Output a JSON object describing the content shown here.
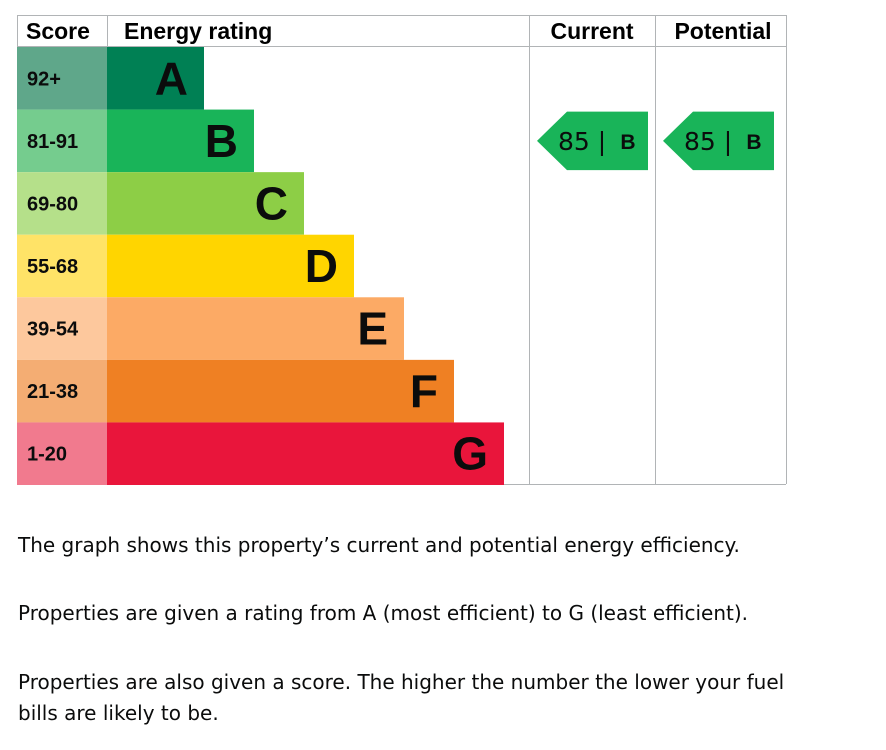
{
  "chart_data": {
    "type": "table",
    "headers": {
      "score": "Score",
      "rating": "Energy rating",
      "current": "Current",
      "potential": "Potential"
    },
    "bands": [
      {
        "score": "92+",
        "letter": "A",
        "color": "#008054",
        "score_bg": "#5fa78a"
      },
      {
        "score": "81-91",
        "letter": "B",
        "color": "#19b459",
        "score_bg": "#75cc8e"
      },
      {
        "score": "69-80",
        "letter": "C",
        "color": "#8dce46",
        "score_bg": "#b5e08a"
      },
      {
        "score": "55-68",
        "letter": "D",
        "color": "#ffd500",
        "score_bg": "#ffe367"
      },
      {
        "score": "39-54",
        "letter": "E",
        "color": "#fcaa65",
        "score_bg": "#fdc89d"
      },
      {
        "score": "21-38",
        "letter": "F",
        "color": "#ef8023",
        "score_bg": "#f4ad73"
      },
      {
        "score": "1-20",
        "letter": "G",
        "color": "#e9153b",
        "score_bg": "#f17a8e"
      }
    ],
    "current": {
      "score": 85,
      "letter": "B",
      "label": "85 | ",
      "color": "#19b459"
    },
    "potential": {
      "score": 85,
      "letter": "B",
      "label": "85 | ",
      "color": "#19b459"
    }
  },
  "text": {
    "p1": "The graph shows this property’s current and potential energy efficiency.",
    "p2": "Properties are given a rating from A (most efficient) to G (least efficient).",
    "p3": "Properties are also given a score. The higher the number the lower your fuel bills are likely to be."
  }
}
